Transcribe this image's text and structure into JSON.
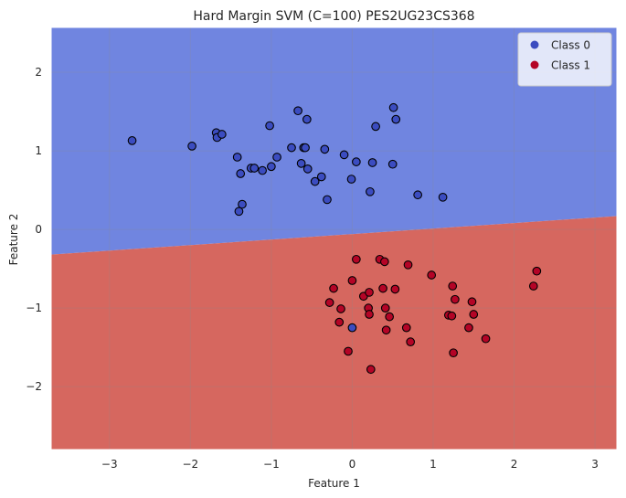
{
  "chart_data": {
    "type": "scatter",
    "title": "Hard Margin SVM (C=100) PES2UG23CS368",
    "xlabel": "Feature 1",
    "ylabel": "Feature 2",
    "xlim": [
      -3.72,
      3.27
    ],
    "ylim": [
      -2.8,
      2.57
    ],
    "xticks": [
      -3,
      -2,
      -1,
      0,
      1,
      2,
      3
    ],
    "yticks": [
      -2,
      -1,
      0,
      1,
      2
    ],
    "grid": true,
    "legend_position": "top-right",
    "decision_boundary": {
      "description": "linear boundary separating regions",
      "points": [
        [
          -3.72,
          -0.32
        ],
        [
          3.27,
          0.17
        ]
      ]
    },
    "regions": [
      {
        "name": "Class 0",
        "color": "#7085e0"
      },
      {
        "name": "Class 1",
        "color": "#d6675f"
      }
    ],
    "series": [
      {
        "name": "Class 0",
        "color": "#3b4cc0",
        "points": [
          [
            -2.72,
            1.13
          ],
          [
            -1.98,
            1.06
          ],
          [
            -1.68,
            1.23
          ],
          [
            -1.67,
            1.17
          ],
          [
            -1.61,
            1.21
          ],
          [
            -1.42,
            0.92
          ],
          [
            -1.38,
            0.71
          ],
          [
            -1.25,
            0.78
          ],
          [
            -1.21,
            0.78
          ],
          [
            -1.11,
            0.75
          ],
          [
            -1.02,
            1.32
          ],
          [
            -1.0,
            0.8
          ],
          [
            -0.93,
            0.92
          ],
          [
            -0.75,
            1.04
          ],
          [
            -0.67,
            1.51
          ],
          [
            -0.63,
            0.84
          ],
          [
            -0.6,
            1.04
          ],
          [
            -0.58,
            1.04
          ],
          [
            -0.56,
            1.4
          ],
          [
            -0.55,
            0.77
          ],
          [
            -0.46,
            0.61
          ],
          [
            -0.38,
            0.67
          ],
          [
            -0.34,
            1.02
          ],
          [
            -0.31,
            0.38
          ],
          [
            -0.1,
            0.95
          ],
          [
            -0.01,
            0.64
          ],
          [
            0.05,
            0.86
          ],
          [
            0.22,
            0.48
          ],
          [
            0.25,
            0.85
          ],
          [
            0.29,
            1.31
          ],
          [
            0.5,
            0.83
          ],
          [
            0.51,
            1.55
          ],
          [
            0.54,
            1.4
          ],
          [
            0.81,
            0.44
          ],
          [
            1.12,
            0.41
          ],
          [
            -1.36,
            0.32
          ],
          [
            -1.4,
            0.23
          ],
          [
            0.0,
            -1.25
          ]
        ]
      },
      {
        "name": "Class 1",
        "color": "#b40426",
        "points": [
          [
            0.05,
            -0.38
          ],
          [
            0.34,
            -0.38
          ],
          [
            0.4,
            -0.41
          ],
          [
            0.69,
            -0.45
          ],
          [
            0.98,
            -0.58
          ],
          [
            2.28,
            -0.53
          ],
          [
            2.24,
            -0.72
          ],
          [
            1.24,
            -0.72
          ],
          [
            0.0,
            -0.65
          ],
          [
            -0.23,
            -0.75
          ],
          [
            0.14,
            -0.85
          ],
          [
            0.21,
            -0.8
          ],
          [
            0.38,
            -0.75
          ],
          [
            0.53,
            -0.76
          ],
          [
            -0.28,
            -0.93
          ],
          [
            -0.14,
            -1.01
          ],
          [
            0.2,
            -1.0
          ],
          [
            0.21,
            -1.08
          ],
          [
            0.46,
            -1.11
          ],
          [
            0.41,
            -1.0
          ],
          [
            1.27,
            -0.89
          ],
          [
            1.48,
            -0.92
          ],
          [
            1.5,
            -1.08
          ],
          [
            1.19,
            -1.09
          ],
          [
            1.23,
            -1.1
          ],
          [
            -0.16,
            -1.18
          ],
          [
            0.42,
            -1.28
          ],
          [
            0.67,
            -1.25
          ],
          [
            1.44,
            -1.25
          ],
          [
            1.65,
            -1.39
          ],
          [
            0.72,
            -1.43
          ],
          [
            -0.05,
            -1.55
          ],
          [
            1.25,
            -1.57
          ],
          [
            0.23,
            -1.78
          ]
        ]
      }
    ]
  },
  "legend": {
    "items": [
      {
        "label": "Class 0",
        "color": "#3b4cc0"
      },
      {
        "label": "Class 1",
        "color": "#b40426"
      }
    ]
  }
}
